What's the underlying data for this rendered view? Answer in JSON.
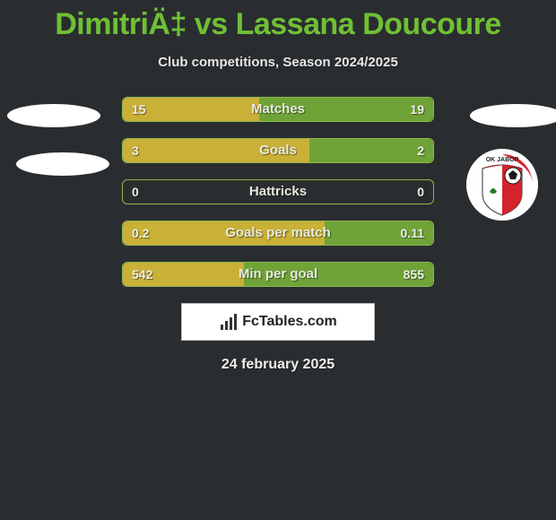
{
  "title": "DimitriÄ‡ vs Lassana Doucoure",
  "subtitle": "Club competitions, Season 2024/2025",
  "date": "24 february 2025",
  "brand": "FcTables.com",
  "colors": {
    "background": "#2a2d2f",
    "title": "#6fc035",
    "bar_border": "#8eb84f",
    "left_fill": "#c9b037",
    "right_fill": "#6fa338",
    "badge": "#ffffff"
  },
  "club_logo": {
    "name": "OK JAVOR",
    "shield_red": "#d4232a",
    "shield_white": "#ffffff",
    "ball_outline": "#1a1a1a"
  },
  "rows": [
    {
      "label": "Matches",
      "left": "15",
      "right": "19",
      "left_pct": 44,
      "right_pct": 56
    },
    {
      "label": "Goals",
      "left": "3",
      "right": "2",
      "left_pct": 60,
      "right_pct": 40
    },
    {
      "label": "Hattricks",
      "left": "0",
      "right": "0",
      "left_pct": 0,
      "right_pct": 0
    },
    {
      "label": "Goals per match",
      "left": "0.2",
      "right": "0.11",
      "left_pct": 65,
      "right_pct": 35
    },
    {
      "label": "Min per goal",
      "left": "542",
      "right": "855",
      "left_pct": 39,
      "right_pct": 61
    }
  ]
}
